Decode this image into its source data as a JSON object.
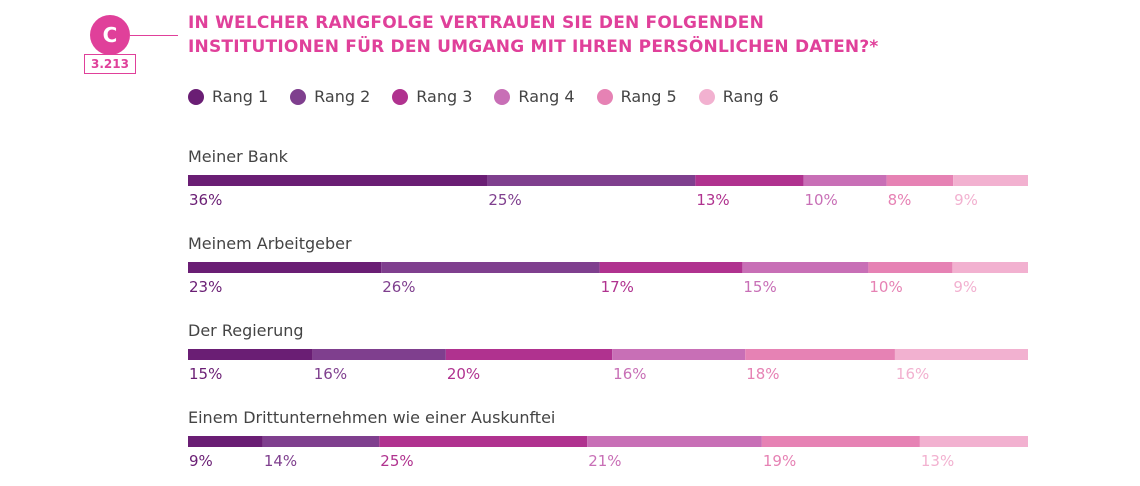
{
  "header": {
    "badge_letter": "C",
    "badge_number": "3.213",
    "title_line1": "IN WELCHER RANGFOLGE VERTRAUEN SIE DEN FOLGENDEN",
    "title_line2": "INSTITUTIONEN FÜR DEN UMGANG MIT IHREN PERSÖNLICHEN DATEN?*"
  },
  "colors": {
    "accent": "#e0409a",
    "title": "#e0409a"
  },
  "chart_data": {
    "type": "bar",
    "orientation": "horizontal",
    "stacked": true,
    "unit": "%",
    "categories": [
      "Meiner Bank",
      "Meinem Arbeitgeber",
      "Der Regierung",
      "Einem Drittunternehmen wie einer Auskunftei"
    ],
    "series": [
      {
        "name": "Rang 1",
        "color": "#6a1e74",
        "values": [
          36,
          23,
          15,
          9
        ]
      },
      {
        "name": "Rang 2",
        "color": "#7f3f8e",
        "values": [
          25,
          26,
          16,
          14
        ]
      },
      {
        "name": "Rang 3",
        "color": "#b0328f",
        "values": [
          13,
          17,
          20,
          25
        ]
      },
      {
        "name": "Rang 4",
        "color": "#c86fb6",
        "values": [
          10,
          15,
          16,
          21
        ]
      },
      {
        "name": "Rang 5",
        "color": "#e682b4",
        "values": [
          8,
          10,
          18,
          19
        ]
      },
      {
        "name": "Rang 6",
        "color": "#f2b1d0",
        "values": [
          9,
          9,
          16,
          13
        ]
      }
    ],
    "legend_position": "top",
    "grid": false
  }
}
